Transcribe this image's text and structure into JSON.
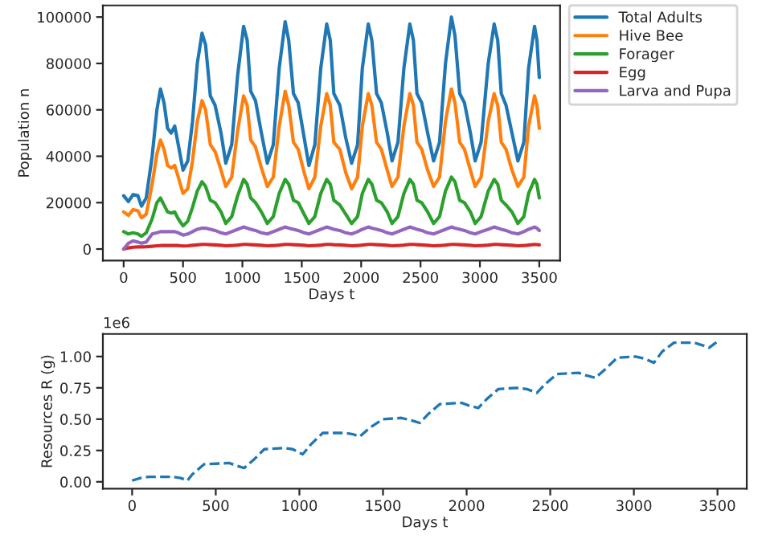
{
  "chart_data": [
    {
      "type": "line",
      "xlabel": "Days t",
      "ylabel": "Population n",
      "xlim": [
        -175,
        3675
      ],
      "ylim": [
        -5000,
        105000
      ],
      "xticks": [
        0,
        500,
        1000,
        1500,
        2000,
        2500,
        3000,
        3500
      ],
      "yticks": [
        0,
        20000,
        40000,
        60000,
        80000,
        100000
      ],
      "grid": false,
      "legend": "right",
      "line_style": "solid",
      "marker": "none",
      "x": [
        0,
        40,
        80,
        120,
        150,
        190,
        240,
        280,
        310,
        340,
        370,
        400,
        430,
        460,
        500,
        540,
        580,
        620,
        660,
        690,
        730,
        770,
        820,
        860,
        910,
        960,
        1010,
        1040,
        1070,
        1110,
        1160,
        1210,
        1260,
        1310,
        1360,
        1390,
        1430,
        1470,
        1520,
        1560,
        1610,
        1660,
        1710,
        1740,
        1770,
        1820,
        1870,
        1920,
        1970,
        2010,
        2060,
        2090,
        2130,
        2170,
        2220,
        2260,
        2310,
        2360,
        2410,
        2440,
        2470,
        2510,
        2560,
        2610,
        2660,
        2710,
        2760,
        2790,
        2830,
        2870,
        2920,
        2960,
        3010,
        3070,
        3120,
        3150,
        3180,
        3220,
        3270,
        3320,
        3370,
        3410,
        3460,
        3480,
        3500
      ],
      "series": [
        {
          "name": "Total Adults",
          "color": "#1f77b4",
          "values": [
            23000,
            20500,
            23500,
            23000,
            18500,
            22000,
            40000,
            60000,
            69000,
            63000,
            52000,
            50000,
            53000,
            45000,
            34000,
            38000,
            55000,
            80000,
            93000,
            88000,
            66000,
            62000,
            50000,
            37000,
            45000,
            75000,
            96000,
            90000,
            68000,
            64000,
            50000,
            37000,
            45000,
            78000,
            98000,
            90000,
            67000,
            63000,
            48000,
            36000,
            45000,
            78000,
            97000,
            90000,
            67000,
            62000,
            48000,
            37000,
            45000,
            78000,
            97000,
            90000,
            67000,
            63000,
            50000,
            38000,
            46000,
            78000,
            97000,
            90000,
            67000,
            63000,
            50000,
            38000,
            46000,
            80000,
            100000,
            92000,
            67000,
            63000,
            50000,
            38000,
            46000,
            80000,
            97000,
            90000,
            67000,
            62000,
            50000,
            38000,
            46000,
            78000,
            96000,
            90000,
            74000
          ]
        },
        {
          "name": "Hive Bee",
          "color": "#ff7f0e",
          "values": [
            16000,
            14500,
            17000,
            16500,
            13500,
            15000,
            28000,
            41000,
            47000,
            43000,
            36000,
            35000,
            36000,
            31000,
            24000,
            26000,
            38000,
            55000,
            64000,
            60000,
            45000,
            42000,
            34000,
            27000,
            31000,
            51000,
            66000,
            62000,
            47000,
            44000,
            35000,
            27000,
            31000,
            53000,
            68000,
            62000,
            46000,
            43000,
            33000,
            26000,
            31000,
            53000,
            67000,
            62000,
            46000,
            43000,
            33000,
            26000,
            31000,
            53000,
            67000,
            62000,
            46000,
            43000,
            34000,
            27000,
            31000,
            53000,
            67000,
            62000,
            46000,
            43000,
            34000,
            27000,
            31000,
            55000,
            69000,
            63000,
            46000,
            43000,
            34000,
            27000,
            31000,
            55000,
            67000,
            62000,
            46000,
            43000,
            34000,
            27000,
            31000,
            53000,
            66000,
            62000,
            52000
          ]
        },
        {
          "name": "Forager",
          "color": "#2ca02c",
          "values": [
            7500,
            6500,
            7000,
            6500,
            5500,
            7000,
            13000,
            20000,
            22000,
            19000,
            16000,
            15500,
            16000,
            13000,
            10000,
            12000,
            18000,
            25000,
            29000,
            27000,
            21000,
            20000,
            16000,
            11000,
            14000,
            23000,
            30000,
            28000,
            22000,
            20000,
            16000,
            11000,
            14000,
            24000,
            30000,
            28000,
            21000,
            20000,
            15000,
            11000,
            14000,
            24000,
            30000,
            28000,
            21000,
            19000,
            15000,
            11000,
            14000,
            24000,
            30000,
            28000,
            21000,
            20000,
            16000,
            11000,
            14000,
            24000,
            30000,
            28000,
            21000,
            20000,
            16000,
            11000,
            14000,
            25000,
            31000,
            29000,
            21000,
            20000,
            16000,
            11000,
            14000,
            25000,
            30000,
            28000,
            21000,
            19000,
            16000,
            11000,
            14000,
            24000,
            30000,
            28000,
            22000
          ]
        },
        {
          "name": "Egg",
          "color": "#d62728",
          "values": [
            0,
            500,
            800,
            900,
            900,
            1000,
            1200,
            1400,
            1500,
            1500,
            1500,
            1500,
            1500,
            1500,
            1300,
            1400,
            1600,
            1800,
            2000,
            2000,
            1900,
            1800,
            1600,
            1400,
            1500,
            1700,
            2000,
            2000,
            1900,
            1800,
            1600,
            1400,
            1500,
            1700,
            2000,
            2000,
            1900,
            1800,
            1600,
            1400,
            1500,
            1700,
            2000,
            2000,
            1900,
            1800,
            1600,
            1400,
            1500,
            1700,
            2000,
            2000,
            1900,
            1800,
            1600,
            1400,
            1500,
            1700,
            2000,
            2000,
            1900,
            1800,
            1600,
            1400,
            1500,
            1700,
            2000,
            2000,
            1900,
            1800,
            1600,
            1400,
            1500,
            1700,
            2000,
            2000,
            1900,
            1800,
            1600,
            1400,
            1500,
            1700,
            2000,
            1900,
            1800
          ]
        },
        {
          "name": "Larva and Pupa",
          "color": "#9467bd",
          "values": [
            0,
            2500,
            3500,
            3000,
            2500,
            3000,
            6500,
            7000,
            7500,
            7500,
            7500,
            7500,
            7500,
            7000,
            6000,
            6500,
            7500,
            8500,
            9000,
            9000,
            8500,
            8000,
            7000,
            6500,
            7500,
            8500,
            9500,
            9000,
            8500,
            8000,
            7000,
            6500,
            7500,
            8500,
            9500,
            9000,
            8500,
            8000,
            7000,
            6500,
            7500,
            8500,
            9500,
            9000,
            8500,
            8000,
            7000,
            6500,
            7500,
            8500,
            9500,
            9000,
            8500,
            8000,
            7000,
            6500,
            7500,
            8500,
            9500,
            9000,
            8500,
            8000,
            7000,
            6500,
            7500,
            8500,
            9500,
            9000,
            8500,
            8000,
            7000,
            6500,
            7500,
            8500,
            9500,
            9000,
            8500,
            8000,
            7000,
            6500,
            7500,
            8500,
            9500,
            9000,
            8000
          ]
        }
      ]
    },
    {
      "type": "line",
      "xlabel": "Days t",
      "ylabel": "Resources R (g)",
      "annotations": [
        "1e6"
      ],
      "xlim": [
        -175,
        3675
      ],
      "ylim": [
        -0.055,
        1.18
      ],
      "xticks": [
        0,
        500,
        1000,
        1500,
        2000,
        2500,
        3000,
        3500
      ],
      "yticks": [
        {
          "value": 0,
          "label": "0.00"
        },
        {
          "value": 0.25,
          "label": "0.25"
        },
        {
          "value": 0.5,
          "label": "0.50"
        },
        {
          "value": 0.75,
          "label": "0.75"
        },
        {
          "value": 1,
          "label": "1.00"
        }
      ],
      "grid": false,
      "legend": false,
      "line_style": "dashed",
      "marker": "none",
      "x": [
        0,
        50,
        100,
        240,
        290,
        330,
        360,
        430,
        580,
        620,
        670,
        730,
        790,
        910,
        960,
        1020,
        1070,
        1140,
        1270,
        1320,
        1360,
        1420,
        1500,
        1610,
        1670,
        1720,
        1770,
        1840,
        1970,
        2010,
        2070,
        2120,
        2190,
        2300,
        2360,
        2420,
        2470,
        2540,
        2670,
        2710,
        2770,
        2830,
        2900,
        3010,
        3070,
        3120,
        3170,
        3240,
        3360,
        3410,
        3450,
        3500
      ],
      "series": [
        {
          "color": "#1f77b4",
          "values": [
            0.01,
            0.03,
            0.04,
            0.04,
            0.03,
            0.01,
            0.06,
            0.14,
            0.15,
            0.13,
            0.11,
            0.18,
            0.26,
            0.27,
            0.26,
            0.22,
            0.3,
            0.39,
            0.39,
            0.38,
            0.36,
            0.43,
            0.5,
            0.51,
            0.49,
            0.47,
            0.54,
            0.62,
            0.63,
            0.61,
            0.59,
            0.66,
            0.74,
            0.75,
            0.74,
            0.71,
            0.78,
            0.86,
            0.87,
            0.85,
            0.83,
            0.9,
            0.99,
            1.0,
            0.98,
            0.95,
            1.04,
            1.11,
            1.11,
            1.09,
            1.07,
            1.12
          ]
        }
      ]
    }
  ]
}
